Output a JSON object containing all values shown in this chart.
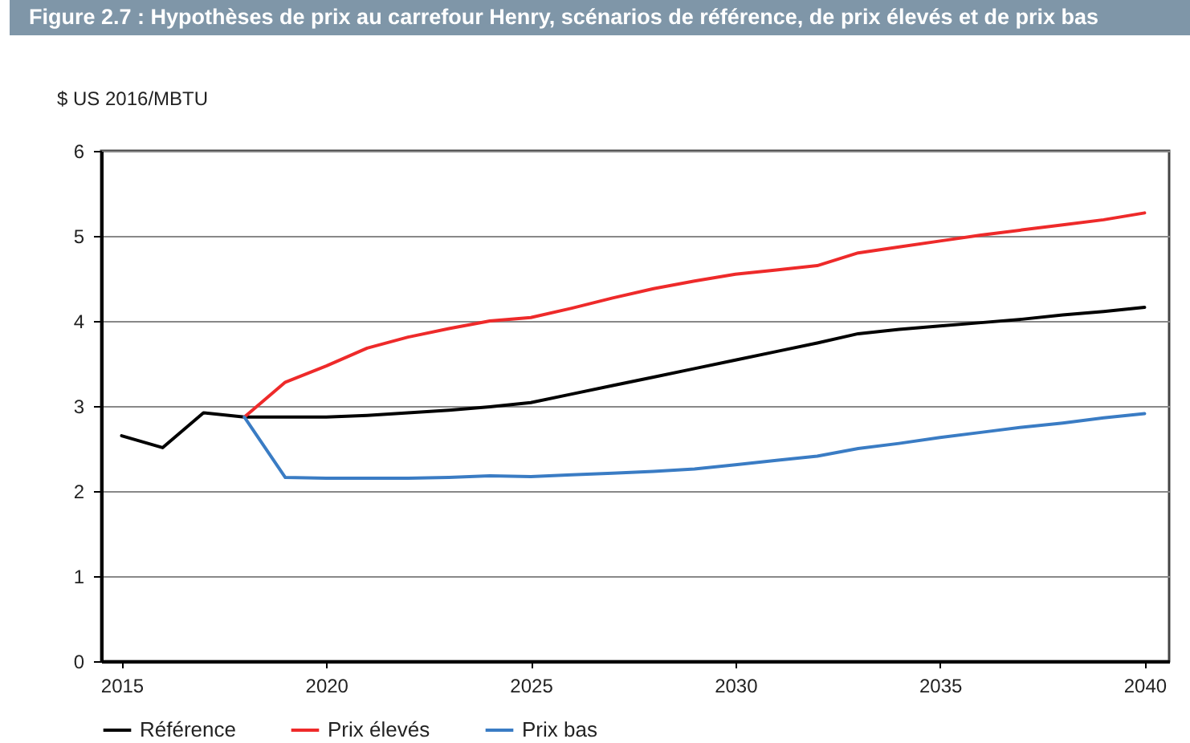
{
  "chart_data": {
    "type": "line",
    "title": "Figure 2.7 : Hypothèses de prix au carrefour Henry, scénarios de référence, de prix élevés et de prix bas",
    "ylabel": "$ US 2016/MBTU",
    "xlim": [
      2014.5,
      2040.6
    ],
    "xticks": [
      2015,
      2020,
      2025,
      2030,
      2035,
      2040
    ],
    "ylim": [
      0,
      6
    ],
    "yticks": [
      0,
      1,
      2,
      3,
      4,
      5,
      6
    ],
    "grid": "y",
    "legend": "bottom",
    "line_style": "solid",
    "marker": "none",
    "series": [
      {
        "name": "Référence",
        "color": "#000000",
        "x": [
          2015,
          2016,
          2017,
          2018,
          2019,
          2020,
          2021,
          2022,
          2023,
          2024,
          2025,
          2026,
          2027,
          2028,
          2029,
          2030,
          2031,
          2032,
          2033,
          2034,
          2035,
          2036,
          2037,
          2038,
          2039,
          2040
        ],
        "values": [
          2.65,
          2.51,
          2.92,
          2.87,
          2.87,
          2.87,
          2.89,
          2.92,
          2.95,
          2.99,
          3.04,
          3.14,
          3.24,
          3.34,
          3.44,
          3.54,
          3.64,
          3.74,
          3.85,
          3.9,
          3.94,
          3.98,
          4.02,
          4.07,
          4.11,
          4.16
        ]
      },
      {
        "name": "Prix élevés",
        "color": "#ee2a2a",
        "x": [
          2018,
          2019,
          2020,
          2021,
          2022,
          2023,
          2024,
          2025,
          2026,
          2027,
          2028,
          2029,
          2030,
          2031,
          2032,
          2033,
          2034,
          2035,
          2036,
          2037,
          2038,
          2039,
          2040
        ],
        "values": [
          2.87,
          3.28,
          3.47,
          3.68,
          3.81,
          3.91,
          4.0,
          4.04,
          4.15,
          4.27,
          4.38,
          4.47,
          4.55,
          4.6,
          4.65,
          4.8,
          4.87,
          4.94,
          5.01,
          5.07,
          5.13,
          5.19,
          5.27
        ]
      },
      {
        "name": "Prix bas",
        "color": "#3a7cc4",
        "x": [
          2018,
          2019,
          2020,
          2021,
          2022,
          2023,
          2024,
          2025,
          2026,
          2027,
          2028,
          2029,
          2030,
          2031,
          2032,
          2033,
          2034,
          2035,
          2036,
          2037,
          2038,
          2039,
          2040
        ],
        "values": [
          2.87,
          2.16,
          2.15,
          2.15,
          2.15,
          2.16,
          2.18,
          2.17,
          2.19,
          2.21,
          2.23,
          2.26,
          2.31,
          2.36,
          2.41,
          2.5,
          2.56,
          2.63,
          2.69,
          2.75,
          2.8,
          2.86,
          2.91
        ]
      }
    ]
  }
}
